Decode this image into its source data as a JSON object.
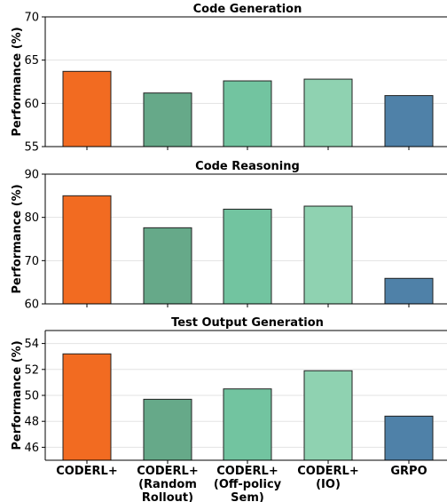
{
  "chart_data": [
    {
      "type": "bar",
      "title": "Code Generation",
      "ylabel": "Performance (%)",
      "ylim": [
        55,
        70
      ],
      "yticks": [
        55,
        60,
        65,
        70
      ],
      "categories": [
        "CODERL+",
        "CODERL+ (Random Rollout)",
        "CODERL+ (Off-policy Sem)",
        "CODERL+ (IO)",
        "GRPO"
      ],
      "values": [
        63.7,
        61.2,
        62.6,
        62.8,
        60.9
      ],
      "colors": [
        "#f26b21",
        "#66a989",
        "#72c4a0",
        "#8fd2b1",
        "#4f81a8"
      ],
      "grid": "y"
    },
    {
      "type": "bar",
      "title": "Code Reasoning",
      "ylabel": "Performance (%)",
      "ylim": [
        60,
        90
      ],
      "yticks": [
        60,
        70,
        80,
        90
      ],
      "categories": [
        "CODERL+",
        "CODERL+ (Random Rollout)",
        "CODERL+ (Off-policy Sem)",
        "CODERL+ (IO)",
        "GRPO"
      ],
      "values": [
        85.0,
        77.6,
        81.9,
        82.6,
        65.9
      ],
      "colors": [
        "#f26b21",
        "#66a989",
        "#72c4a0",
        "#8fd2b1",
        "#4f81a8"
      ],
      "grid": "y"
    },
    {
      "type": "bar",
      "title": "Test Output Generation",
      "ylabel": "Performance (%)",
      "ylim": [
        45,
        55
      ],
      "yticks": [
        46,
        48,
        50,
        52,
        54
      ],
      "categories": [
        "CODERL+",
        "CODERL+ (Random Rollout)",
        "CODERL+ (Off-policy Sem)",
        "CODERL+ (IO)",
        "GRPO"
      ],
      "values": [
        53.2,
        49.7,
        50.5,
        51.9,
        48.4
      ],
      "colors": [
        "#f26b21",
        "#66a989",
        "#72c4a0",
        "#8fd2b1",
        "#4f81a8"
      ],
      "grid": "y"
    }
  ],
  "xtick_lines": [
    [
      "CODERL+"
    ],
    [
      "CODERL+",
      "(Random",
      "Rollout)"
    ],
    [
      "CODERL+",
      "(Off-policy",
      "Sem)"
    ],
    [
      "CODERL+",
      "(IO)"
    ],
    [
      "GRPO"
    ]
  ]
}
